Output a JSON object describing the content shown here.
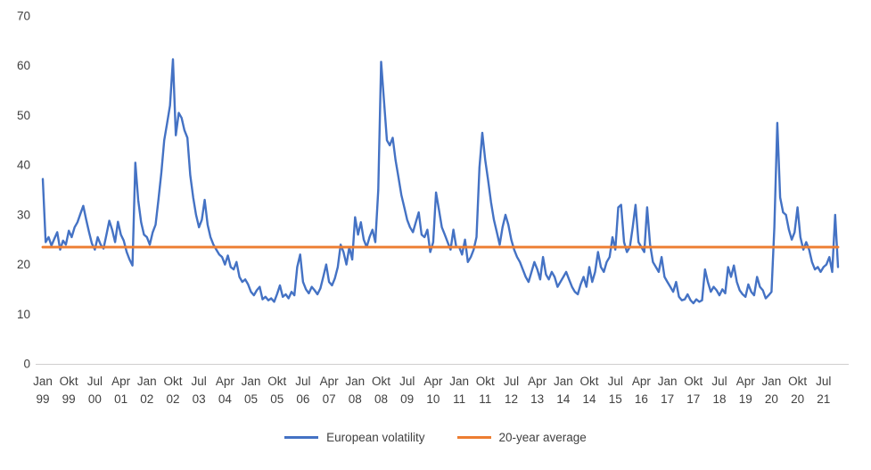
{
  "chart_data": {
    "type": "line",
    "title": "",
    "x_unit": "month",
    "x_start_label": "Jan 99",
    "x_tick_interval_months": 9,
    "x_tick_labels": [
      [
        "Jan",
        "99"
      ],
      [
        "Okt",
        "99"
      ],
      [
        "Jul",
        "00"
      ],
      [
        "Apr",
        "01"
      ],
      [
        "Jan",
        "02"
      ],
      [
        "Okt",
        "02"
      ],
      [
        "Jul",
        "03"
      ],
      [
        "Apr",
        "04"
      ],
      [
        "Jan",
        "05"
      ],
      [
        "Okt",
        "05"
      ],
      [
        "Jul",
        "06"
      ],
      [
        "Apr",
        "07"
      ],
      [
        "Jan",
        "08"
      ],
      [
        "Okt",
        "08"
      ],
      [
        "Jul",
        "09"
      ],
      [
        "Apr",
        "10"
      ],
      [
        "Jan",
        "11"
      ],
      [
        "Okt",
        "11"
      ],
      [
        "Jul",
        "12"
      ],
      [
        "Apr",
        "13"
      ],
      [
        "Jan",
        "14"
      ],
      [
        "Okt",
        "14"
      ],
      [
        "Jul",
        "15"
      ],
      [
        "Apr",
        "16"
      ],
      [
        "Jan",
        "17"
      ],
      [
        "Okt",
        "17"
      ],
      [
        "Jul",
        "18"
      ],
      [
        "Apr",
        "19"
      ],
      [
        "Jan",
        "20"
      ],
      [
        "Okt",
        "20"
      ],
      [
        "Jul",
        "21"
      ]
    ],
    "y_ticks": [
      0,
      10,
      20,
      30,
      40,
      50,
      60,
      70
    ],
    "ylim": [
      0,
      70
    ],
    "grid": false,
    "legend_position": "bottom",
    "axis_color": "#d0cece",
    "tick_label_color": "#404040",
    "series": [
      {
        "name": "European volatility",
        "type": "line",
        "color": "#4472C4",
        "values": [
          37.2,
          24.5,
          25.5,
          23.8,
          25.2,
          26.5,
          23.0,
          24.8,
          24.0,
          26.8,
          25.5,
          27.5,
          28.5,
          30.2,
          31.8,
          29.0,
          26.5,
          24.2,
          23.0,
          25.5,
          24.0,
          23.2,
          26.0,
          28.8,
          27.0,
          24.5,
          28.6,
          26.0,
          24.8,
          22.5,
          21.0,
          19.8,
          40.5,
          33.0,
          28.5,
          26.0,
          25.5,
          24.0,
          26.5,
          28.0,
          33.0,
          38.5,
          45.0,
          48.5,
          52.0,
          61.3,
          46.0,
          50.5,
          49.5,
          47.0,
          45.5,
          38.0,
          33.5,
          30.0,
          27.5,
          29.0,
          33.0,
          28.0,
          25.5,
          24.0,
          23.0,
          22.0,
          21.5,
          20.0,
          21.8,
          19.5,
          19.0,
          20.5,
          17.5,
          16.5,
          17.0,
          16.0,
          14.5,
          13.8,
          14.8,
          15.5,
          13.0,
          13.5,
          12.8,
          13.2,
          12.5,
          14.0,
          15.8,
          13.5,
          14.0,
          13.2,
          14.5,
          13.8,
          19.5,
          22.0,
          16.5,
          15.0,
          14.2,
          15.5,
          14.8,
          14.0,
          15.2,
          17.5,
          20.0,
          16.5,
          15.8,
          17.2,
          19.5,
          24.0,
          22.5,
          20.0,
          23.5,
          21.0,
          29.5,
          26.0,
          28.5,
          25.0,
          23.5,
          25.5,
          27.0,
          24.5,
          35.0,
          60.8,
          53.0,
          45.0,
          44.0,
          45.5,
          41.0,
          37.5,
          34.0,
          31.5,
          29.0,
          27.5,
          26.5,
          28.5,
          30.5,
          26.0,
          25.5,
          27.0,
          22.5,
          24.5,
          34.5,
          31.0,
          27.5,
          26.0,
          24.5,
          23.0,
          27.0,
          23.5,
          23.5,
          22.0,
          25.0,
          20.5,
          21.5,
          23.0,
          25.5,
          39.5,
          46.5,
          41.0,
          37.0,
          32.5,
          29.0,
          26.5,
          24.0,
          27.5,
          30.0,
          28.0,
          25.0,
          23.0,
          21.5,
          20.5,
          19.0,
          17.5,
          16.5,
          18.5,
          20.5,
          19.0,
          17.0,
          21.5,
          18.0,
          17.0,
          18.5,
          17.5,
          15.5,
          16.5,
          17.5,
          18.5,
          17.0,
          15.5,
          14.5,
          14.0,
          16.0,
          17.5,
          15.5,
          19.5,
          16.5,
          18.5,
          22.5,
          19.5,
          18.5,
          20.5,
          21.5,
          25.5,
          23.0,
          31.5,
          32.0,
          24.5,
          22.5,
          23.5,
          27.5,
          32.0,
          24.5,
          23.5,
          22.5,
          31.5,
          24.0,
          20.5,
          19.5,
          18.5,
          21.5,
          17.5,
          16.5,
          15.5,
          14.5,
          16.5,
          13.5,
          12.8,
          13.0,
          14.0,
          12.8,
          12.2,
          13.0,
          12.5,
          12.8,
          19.0,
          16.5,
          14.5,
          15.5,
          14.8,
          13.8,
          15.0,
          14.2,
          19.5,
          17.5,
          19.8,
          16.5,
          14.8,
          14.0,
          13.5,
          16.0,
          14.5,
          13.8,
          17.5,
          15.5,
          14.8,
          13.2,
          13.8,
          14.5,
          27.5,
          48.5,
          33.5,
          30.5,
          30.0,
          27.0,
          25.0,
          26.5,
          31.5,
          25.5,
          23.0,
          24.5,
          23.0,
          20.5,
          19.0,
          19.5,
          18.5,
          19.5,
          20.0,
          21.5,
          18.5,
          30.0,
          19.5
        ]
      },
      {
        "name": "20-year average",
        "type": "hline",
        "color": "#ED7D31",
        "value": 23.5
      }
    ]
  }
}
